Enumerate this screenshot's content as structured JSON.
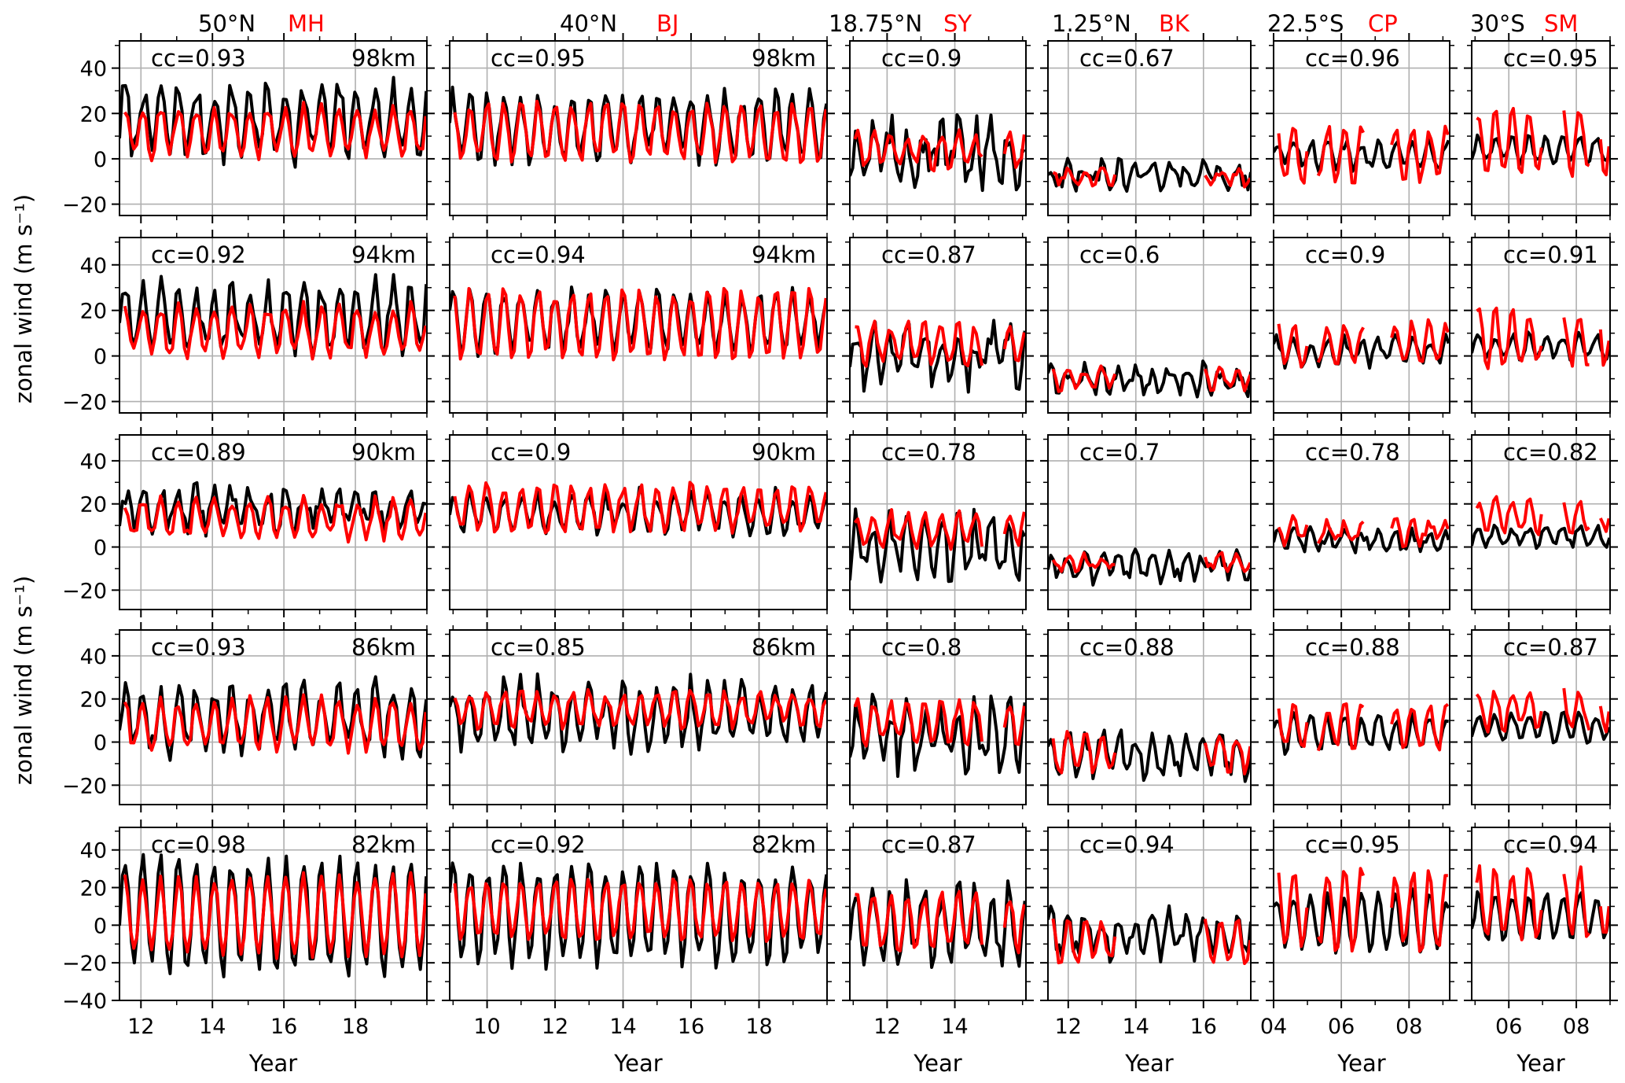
{
  "figure": {
    "ylabel": "zonal wind (m s⁻¹)",
    "xlabel": "Year"
  },
  "chart_data": {
    "type": "line",
    "ylabel": "zonal wind (m s⁻¹)",
    "xlabel": "Year",
    "grid": true,
    "series_styles": [
      {
        "id": "black",
        "color": "#000000"
      },
      {
        "id": "red",
        "color": "#ff0000"
      }
    ],
    "columns": [
      {
        "lat": "50°N",
        "station": "MH",
        "xlim": [
          2011.4,
          2020.0
        ],
        "xticks": [
          2012,
          2014,
          2016,
          2018
        ],
        "xticklabels": [
          "12",
          "14",
          "16",
          "18"
        ]
      },
      {
        "lat": "40°N",
        "station": "BJ",
        "xlim": [
          2008.9,
          2020.0
        ],
        "xticks": [
          2010,
          2012,
          2014,
          2016,
          2018
        ],
        "xticklabels": [
          "10",
          "12",
          "14",
          "16",
          "18"
        ]
      },
      {
        "lat": "18.75°N",
        "station": "SY",
        "xlim": [
          2010.9,
          2016.1
        ],
        "xticks": [
          2012,
          2014
        ],
        "xticklabels": [
          "12",
          "14"
        ]
      },
      {
        "lat": "1.25°N",
        "station": "BK",
        "xlim": [
          2011.4,
          2017.4
        ],
        "xticks": [
          2012,
          2014,
          2016
        ],
        "xticklabels": [
          "12",
          "14",
          "16"
        ]
      },
      {
        "lat": "22.5°S",
        "station": "CP",
        "xlim": [
          2004.0,
          2009.2
        ],
        "xticks": [
          2004,
          2006,
          2008
        ],
        "xticklabels": [
          "04",
          "06",
          "08"
        ]
      },
      {
        "lat": "30°S",
        "station": "SM",
        "xlim": [
          2004.9,
          2009.0
        ],
        "xticks": [
          2006,
          2008
        ],
        "xticklabels": [
          "06",
          "08"
        ]
      }
    ],
    "rows": [
      {
        "altitude": "98km",
        "ylim": [
          -25,
          52
        ],
        "yticks": [
          -20,
          0,
          20,
          40
        ],
        "yticklabels": [
          "−20",
          "0",
          "20",
          "40"
        ]
      },
      {
        "altitude": "94km",
        "ylim": [
          -25,
          52
        ],
        "yticks": [
          -20,
          0,
          20,
          40
        ],
        "yticklabels": [
          "−20",
          "0",
          "20",
          "40"
        ]
      },
      {
        "altitude": "90km",
        "ylim": [
          -29,
          52
        ],
        "yticks": [
          -20,
          0,
          20,
          40
        ],
        "yticklabels": [
          "−20",
          "0",
          "20",
          "40"
        ]
      },
      {
        "altitude": "86km",
        "ylim": [
          -29,
          52
        ],
        "yticks": [
          -20,
          0,
          20,
          40
        ],
        "yticklabels": [
          "−20",
          "0",
          "20",
          "40"
        ]
      },
      {
        "altitude": "82km",
        "ylim": [
          -40,
          52
        ],
        "yticks": [
          -40,
          -20,
          0,
          20,
          40
        ],
        "yticklabels": [
          "−40",
          "−20",
          "0",
          "20",
          "40"
        ]
      }
    ],
    "cc": [
      [
        "0.93",
        "0.95",
        "0.9",
        "0.67",
        "0.96",
        "0.95"
      ],
      [
        "0.92",
        "0.94",
        "0.87",
        "0.6",
        "0.9",
        "0.91"
      ],
      [
        "0.89",
        "0.9",
        "0.78",
        "0.7",
        "0.78",
        "0.82"
      ],
      [
        "0.93",
        "0.85",
        "0.8",
        "0.88",
        "0.88",
        "0.87"
      ],
      [
        "0.98",
        "0.92",
        "0.87",
        "0.94",
        "0.95",
        "0.94"
      ]
    ],
    "cc_prefix": "cc=",
    "series_profiles": [
      [
        {
          "period": 0.5,
          "phase": 0.05,
          "black": {
            "mean": 17,
            "amp": 14,
            "noise": 7
          },
          "red": {
            "mean": 12,
            "amp": 10,
            "noise": 3
          },
          "red_gaps": []
        },
        {
          "period": 0.5,
          "phase": 0.0,
          "black": {
            "mean": 14,
            "amp": 13,
            "noise": 5
          },
          "red": {
            "mean": 12,
            "amp": 12,
            "noise": 3
          },
          "red_gaps": []
        },
        {
          "period": 0.5,
          "phase": 0.1,
          "black": {
            "mean": 3,
            "amp": 9,
            "noise": 9
          },
          "red": {
            "mean": 4,
            "amp": 7,
            "noise": 3
          },
          "red_gaps": [
            [
              2014.8,
              2015.4
            ]
          ]
        },
        {
          "period": 0.5,
          "phase": 0.0,
          "black": {
            "mean": -7,
            "amp": 4,
            "noise": 4
          },
          "red": {
            "mean": -8,
            "amp": 3,
            "noise": 2
          },
          "red_gaps": [
            [
              2013.4,
              2016.0
            ]
          ]
        },
        {
          "period": 0.5,
          "phase": 0.1,
          "black": {
            "mean": 2,
            "amp": 5,
            "noise": 3
          },
          "red": {
            "mean": 2,
            "amp": 12,
            "noise": 3
          },
          "red_gaps": [
            [
              2005.0,
              2005.3
            ],
            [
              2006.7,
              2007.4
            ]
          ]
        },
        {
          "period": 0.5,
          "phase": 0.1,
          "black": {
            "mean": 4,
            "amp": 5,
            "noise": 2
          },
          "red": {
            "mean": 7,
            "amp": 14,
            "noise": 3
          },
          "red_gaps": [
            [
              2007.0,
              2007.6
            ],
            [
              2008.4,
              2008.7
            ]
          ]
        }
      ],
      [
        {
          "period": 0.5,
          "phase": 0.05,
          "black": {
            "mean": 17,
            "amp": 13,
            "noise": 6
          },
          "red": {
            "mean": 11,
            "amp": 10,
            "noise": 3
          },
          "red_gaps": []
        },
        {
          "period": 0.5,
          "phase": 0.0,
          "black": {
            "mean": 15,
            "amp": 12,
            "noise": 4
          },
          "red": {
            "mean": 14,
            "amp": 14,
            "noise": 3
          },
          "red_gaps": []
        },
        {
          "period": 0.5,
          "phase": 0.1,
          "black": {
            "mean": 0,
            "amp": 10,
            "noise": 8
          },
          "red": {
            "mean": 5,
            "amp": 8,
            "noise": 3
          },
          "red_gaps": [
            [
              2014.8,
              2015.4
            ]
          ]
        },
        {
          "period": 0.5,
          "phase": 0.0,
          "black": {
            "mean": -11,
            "amp": 5,
            "noise": 4
          },
          "red": {
            "mean": -10,
            "amp": 4,
            "noise": 2
          },
          "red_gaps": [
            [
              2013.4,
              2016.0
            ]
          ]
        },
        {
          "period": 0.5,
          "phase": 0.1,
          "black": {
            "mean": 2,
            "amp": 5,
            "noise": 3
          },
          "red": {
            "mean": 5,
            "amp": 9,
            "noise": 3
          },
          "red_gaps": [
            [
              2005.0,
              2005.3
            ],
            [
              2006.7,
              2007.4
            ]
          ]
        },
        {
          "period": 0.5,
          "phase": 0.1,
          "black": {
            "mean": 4,
            "amp": 5,
            "noise": 2
          },
          "red": {
            "mean": 8,
            "amp": 12,
            "noise": 3
          },
          "red_gaps": [
            [
              2007.0,
              2007.6
            ],
            [
              2008.4,
              2008.7
            ]
          ]
        }
      ],
      [
        {
          "period": 0.5,
          "phase": 0.05,
          "black": {
            "mean": 18,
            "amp": 8,
            "noise": 6
          },
          "red": {
            "mean": 13,
            "amp": 8,
            "noise": 3
          },
          "red_gaps": []
        },
        {
          "period": 0.5,
          "phase": 0.0,
          "black": {
            "mean": 16,
            "amp": 8,
            "noise": 4
          },
          "red": {
            "mean": 18,
            "amp": 10,
            "noise": 3
          },
          "red_gaps": []
        },
        {
          "period": 0.5,
          "phase": 0.1,
          "black": {
            "mean": 0,
            "amp": 11,
            "noise": 8
          },
          "red": {
            "mean": 8,
            "amp": 7,
            "noise": 3
          },
          "red_gaps": [
            [
              2014.8,
              2015.4
            ]
          ]
        },
        {
          "period": 0.5,
          "phase": 0.0,
          "black": {
            "mean": -9,
            "amp": 5,
            "noise": 4
          },
          "red": {
            "mean": -7,
            "amp": 3,
            "noise": 2
          },
          "red_gaps": [
            [
              2013.4,
              2016.0
            ]
          ]
        },
        {
          "period": 0.5,
          "phase": 0.1,
          "black": {
            "mean": 3,
            "amp": 4,
            "noise": 3
          },
          "red": {
            "mean": 7,
            "amp": 5,
            "noise": 3
          },
          "red_gaps": [
            [
              2005.0,
              2005.3
            ],
            [
              2006.7,
              2007.4
            ]
          ]
        },
        {
          "period": 0.5,
          "phase": 0.1,
          "black": {
            "mean": 5,
            "amp": 4,
            "noise": 2
          },
          "red": {
            "mean": 14,
            "amp": 7,
            "noise": 3
          },
          "red_gaps": [
            [
              2007.0,
              2007.6
            ],
            [
              2008.4,
              2008.7
            ]
          ]
        }
      ],
      [
        {
          "period": 0.5,
          "phase": 0.05,
          "black": {
            "mean": 11,
            "amp": 14,
            "noise": 6
          },
          "red": {
            "mean": 8,
            "amp": 11,
            "noise": 3
          },
          "red_gaps": []
        },
        {
          "period": 0.5,
          "phase": 0.0,
          "black": {
            "mean": 13,
            "amp": 13,
            "noise": 6
          },
          "red": {
            "mean": 15,
            "amp": 7,
            "noise": 3
          },
          "red_gaps": []
        },
        {
          "period": 0.5,
          "phase": 0.1,
          "black": {
            "mean": 3,
            "amp": 12,
            "noise": 9
          },
          "red": {
            "mean": 9,
            "amp": 9,
            "noise": 3
          },
          "red_gaps": [
            [
              2014.8,
              2015.4
            ]
          ]
        },
        {
          "period": 0.5,
          "phase": 0.0,
          "black": {
            "mean": -5,
            "amp": 9,
            "noise": 5
          },
          "red": {
            "mean": -5,
            "amp": 8,
            "noise": 3
          },
          "red_gaps": [
            [
              2013.4,
              2016.0
            ]
          ]
        },
        {
          "period": 0.5,
          "phase": 0.1,
          "black": {
            "mean": 4,
            "amp": 7,
            "noise": 3
          },
          "red": {
            "mean": 7,
            "amp": 10,
            "noise": 3
          },
          "red_gaps": [
            [
              2005.0,
              2005.3
            ],
            [
              2006.7,
              2007.4
            ]
          ]
        },
        {
          "period": 0.5,
          "phase": 0.1,
          "black": {
            "mean": 7,
            "amp": 6,
            "noise": 2
          },
          "red": {
            "mean": 15,
            "amp": 8,
            "noise": 3
          },
          "red_gaps": [
            [
              2007.0,
              2007.6
            ],
            [
              2008.4,
              2008.7
            ]
          ]
        }
      ],
      [
        {
          "period": 0.5,
          "phase": 0.05,
          "black": {
            "mean": 5,
            "amp": 28,
            "noise": 6
          },
          "red": {
            "mean": 5,
            "amp": 20,
            "noise": 3
          },
          "red_gaps": []
        },
        {
          "period": 0.5,
          "phase": 0.0,
          "black": {
            "mean": 6,
            "amp": 24,
            "noise": 6
          },
          "red": {
            "mean": 8,
            "amp": 15,
            "noise": 3
          },
          "red_gaps": []
        },
        {
          "period": 0.5,
          "phase": 0.1,
          "black": {
            "mean": 0,
            "amp": 18,
            "noise": 9
          },
          "red": {
            "mean": 2,
            "amp": 14,
            "noise": 4
          },
          "red_gaps": [
            [
              2014.8,
              2015.4
            ]
          ]
        },
        {
          "period": 0.5,
          "phase": 0.0,
          "black": {
            "mean": -5,
            "amp": 10,
            "noise": 6
          },
          "red": {
            "mean": -8,
            "amp": 10,
            "noise": 4
          },
          "red_gaps": [
            [
              2013.4,
              2016.0
            ]
          ]
        },
        {
          "period": 0.5,
          "phase": 0.1,
          "black": {
            "mean": 2,
            "amp": 14,
            "noise": 4
          },
          "red": {
            "mean": 8,
            "amp": 20,
            "noise": 4
          },
          "red_gaps": [
            [
              2005.0,
              2005.3
            ],
            [
              2006.7,
              2007.4
            ]
          ]
        },
        {
          "period": 0.5,
          "phase": 0.1,
          "black": {
            "mean": 5,
            "amp": 12,
            "noise": 3
          },
          "red": {
            "mean": 12,
            "amp": 18,
            "noise": 4
          },
          "red_gaps": [
            [
              2007.0,
              2007.6
            ],
            [
              2008.4,
              2008.7
            ]
          ]
        }
      ]
    ]
  }
}
